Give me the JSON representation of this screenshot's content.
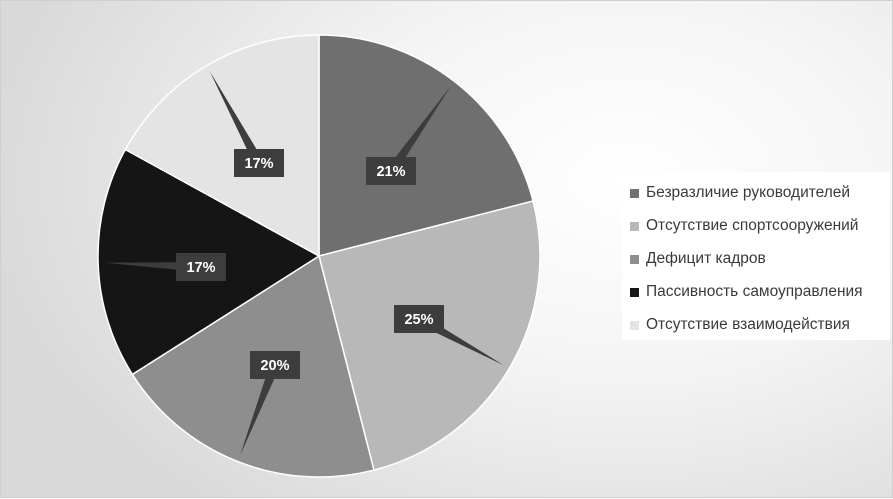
{
  "chart_data": {
    "type": "pie",
    "title": "",
    "categories": [
      "Безразличие руководителей",
      "Отсутствие спортсооружений",
      "Дефицит кадров",
      "Пассивность самоуправления",
      "Отсутствие взаимодействия"
    ],
    "values": [
      21,
      25,
      20,
      17,
      17
    ],
    "data_labels": [
      "21%",
      "25%",
      "20%",
      "17%",
      "17%"
    ],
    "colors": [
      "#6f6f6f",
      "#b8b8b8",
      "#8e8e8e",
      "#151515",
      "#e4e4e4"
    ],
    "label_box_color": "#3d3d3d",
    "legend_position": "right",
    "start_angle_deg": 0,
    "direction": "clockwise"
  }
}
